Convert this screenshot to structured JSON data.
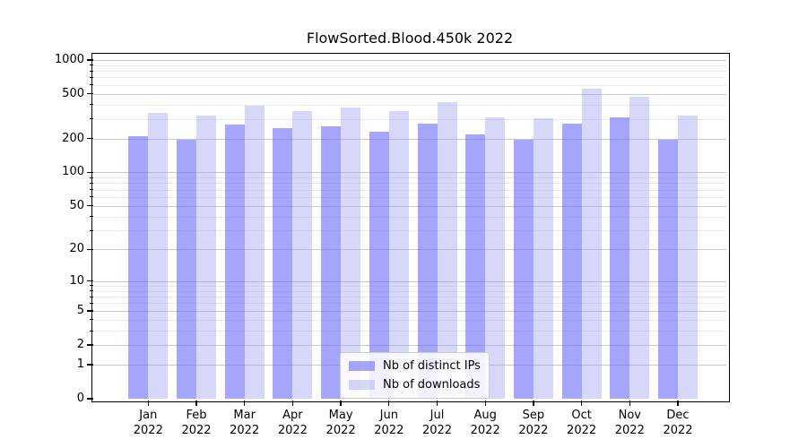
{
  "title": "FlowSorted.Blood.450k 2022",
  "chart_data": {
    "type": "bar",
    "title": "FlowSorted.Blood.450k 2022",
    "months": [
      "Jan",
      "Feb",
      "Mar",
      "Apr",
      "May",
      "Jun",
      "Jul",
      "Aug",
      "Sep",
      "Oct",
      "Nov",
      "Dec"
    ],
    "year": "2022",
    "series": [
      {
        "name": "Nb of distinct IPs",
        "color": "rgba(110,110,248,0.62)",
        "values": [
          212,
          196,
          268,
          246,
          258,
          230,
          273,
          220,
          194,
          273,
          308,
          196
        ]
      },
      {
        "name": "Nb of downloads",
        "color": "rgba(160,160,243,0.42)",
        "values": [
          340,
          318,
          390,
          349,
          375,
          352,
          424,
          312,
          302,
          551,
          472,
          321
        ]
      }
    ],
    "xlabel": "",
    "ylabel": "",
    "scale": "log1p",
    "ylim": [
      0,
      1113
    ],
    "y_ticks": [
      0,
      1,
      2,
      5,
      10,
      20,
      50,
      100,
      200,
      500,
      1000
    ],
    "y_minor_gridlines": [
      3,
      4,
      6,
      7,
      8,
      9,
      30,
      40,
      60,
      70,
      80,
      90,
      300,
      400,
      600,
      700,
      800,
      900
    ],
    "grid": true,
    "legend_position": "lower-center-inside"
  },
  "colors": {
    "major_grid": "#c8c8c8",
    "minor_grid": "#eaeaea",
    "spine": "#000000"
  }
}
